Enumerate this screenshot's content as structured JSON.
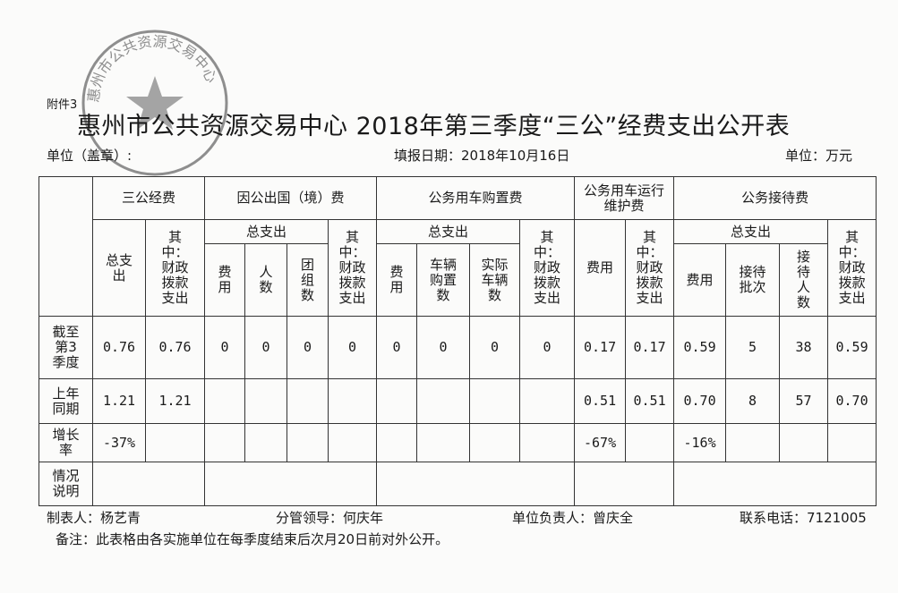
{
  "attachment": "附件3",
  "title": "惠州市公共资源交易中心 2018年第三季度“三公”经费支出公开表",
  "unit_label": "单位（盖章）:",
  "fill_date": "填报日期：2018年10月16日",
  "unit_money": "单位：万元",
  "seal": {
    "text": "惠州市公共资源交易中心",
    "color": "#555555"
  },
  "header": {
    "groups": [
      "三公经费",
      "因公出国（境）费",
      "公务用车购置费",
      "公务用车运行维护费",
      "公务接待费"
    ],
    "total": "总支出",
    "of_which": "其中：财政拨款支出",
    "fee": "费用",
    "persons": "人数",
    "groups_count": "团组数",
    "cars_bought": "车辆购置数",
    "cars_actual": "实际车辆数",
    "reception_batches": "接待批次",
    "reception_persons": "接待人数"
  },
  "rows": [
    {
      "label": "截至第3季度",
      "values": [
        "0.76",
        "0.76",
        "0",
        "0",
        "0",
        "0",
        "0",
        "0",
        "0",
        "0",
        "0.17",
        "0.17",
        "0.59",
        "5",
        "38",
        "0.59"
      ]
    },
    {
      "label": "上年同期",
      "values": [
        "1.21",
        "1.21",
        "",
        "",
        "",
        "",
        "",
        "",
        "",
        "",
        "0.51",
        "0.51",
        "0.70",
        "8",
        "57",
        "0.70"
      ]
    },
    {
      "label": "增长率",
      "values": [
        "-37%",
        "",
        "",
        "",
        "",
        "",
        "",
        "",
        "",
        "",
        "-67%",
        "",
        "-16%",
        "",
        "",
        ""
      ]
    },
    {
      "label": "情况说明"
    }
  ],
  "footer": {
    "maker": "制表人：杨艺青",
    "leader": "分管领导：何庆年",
    "head": "单位负责人：曾庆全",
    "phone": "联系电话：7121005",
    "remark": "备注：此表格由各实施单位在每季度结束后次月20日前对外公开。"
  }
}
